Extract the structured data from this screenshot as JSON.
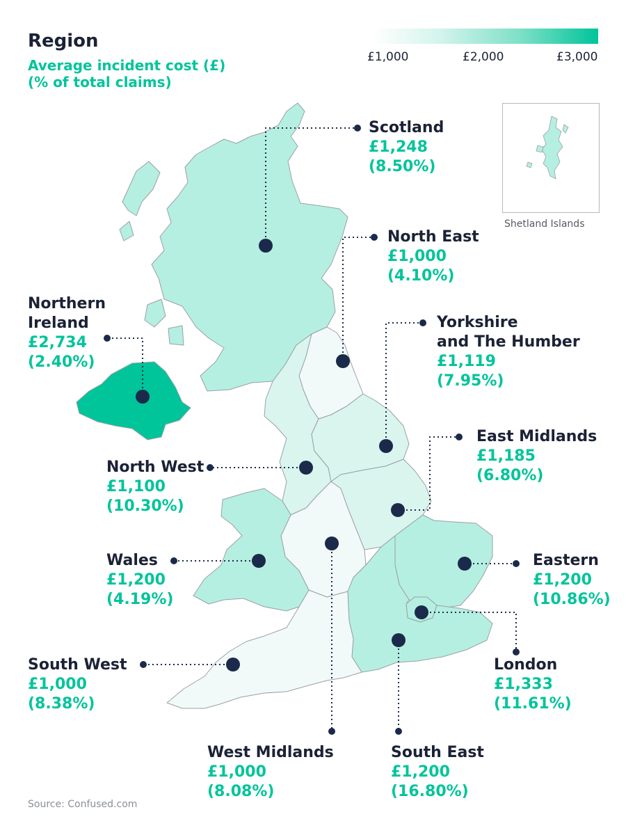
{
  "legend": {
    "title": "Region",
    "subtitle": "Average incident cost (£)\n(% of total claims)",
    "scale_labels": [
      "£1,000",
      "£2,000",
      "£3,000"
    ]
  },
  "colors": {
    "low": "#f1faf8",
    "mid": "#b5efe1",
    "high": "#00c49a",
    "marker": "#1b2a4a",
    "text_dark": "#1b2236",
    "text_accent": "#00c49a"
  },
  "inset": {
    "label": "Shetland Islands"
  },
  "regions": [
    {
      "name": "Scotland",
      "cost": "£1,248",
      "pct": "(8.50%)"
    },
    {
      "name": "North East",
      "cost": "£1,000",
      "pct": "(4.10%)"
    },
    {
      "name": "Yorkshire\nand The Humber",
      "cost": "£1,119",
      "pct": "(7.95%)"
    },
    {
      "name": "East Midlands",
      "cost": "£1,185",
      "pct": "(6.80%)"
    },
    {
      "name": "Northern\nIreland",
      "cost": "£2,734",
      "pct": "(2.40%)"
    },
    {
      "name": "North West",
      "cost": "£1,100",
      "pct": "(10.30%)"
    },
    {
      "name": "Wales",
      "cost": "£1,200",
      "pct": "(4.19%)"
    },
    {
      "name": "Eastern",
      "cost": "£1,200",
      "pct": "(10.86%)"
    },
    {
      "name": "South West",
      "cost": "£1,000",
      "pct": "(8.38%)"
    },
    {
      "name": "London",
      "cost": "£1,333",
      "pct": "(11.61%)"
    },
    {
      "name": "West Midlands",
      "cost": "£1,000",
      "pct": "(8.08%)"
    },
    {
      "name": "South East",
      "cost": "£1,200",
      "pct": "(16.80%)"
    }
  ],
  "source": "Source: Confused.com"
}
